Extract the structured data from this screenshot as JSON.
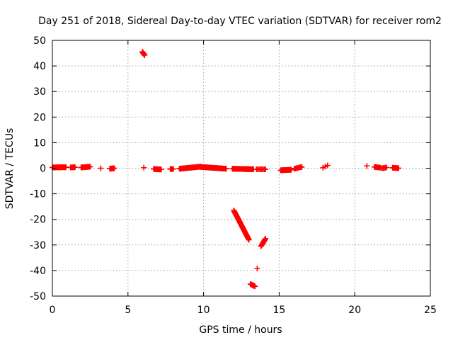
{
  "chart_data": {
    "type": "scatter",
    "title": "Day 251 of 2018, Sidereal Day-to-day VTEC variation (SDTVAR) for receiver rom2",
    "xlabel": "GPS time / hours",
    "ylabel": "SDTVAR / TECUs",
    "xlim": [
      0,
      25
    ],
    "ylim": [
      -50,
      50
    ],
    "xticks": [
      "0",
      "5",
      "10",
      "15",
      "20",
      "25"
    ],
    "yticks": [
      "50",
      "40",
      "30",
      "20",
      "10",
      "0",
      "-10",
      "-20",
      "-30",
      "-40",
      "-50"
    ],
    "grid": true,
    "marker": "+",
    "color": "#ff0000",
    "segments": [
      {
        "x": [
          0.0,
          0.9
        ],
        "y": [
          0.3,
          0.4
        ],
        "n": 28
      },
      {
        "x": [
          1.2,
          1.5
        ],
        "y": [
          0.3,
          0.4
        ],
        "n": 8
      },
      {
        "x": [
          1.9,
          2.5
        ],
        "y": [
          0.3,
          0.6
        ],
        "n": 20
      },
      {
        "x": [
          3.2,
          3.2
        ],
        "y": [
          0.0,
          0.0
        ],
        "n": 1
      },
      {
        "x": [
          3.8,
          4.1
        ],
        "y": [
          -0.2,
          0.0
        ],
        "n": 8
      },
      {
        "x": [
          5.95,
          6.1
        ],
        "y": [
          45.5,
          44.2
        ],
        "n": 7
      },
      {
        "x": [
          6.05,
          6.05
        ],
        "y": [
          0.2,
          0.2
        ],
        "n": 1
      },
      {
        "x": [
          6.7,
          7.2
        ],
        "y": [
          -0.3,
          -0.5
        ],
        "n": 14
      },
      {
        "x": [
          7.8,
          8.0
        ],
        "y": [
          -0.3,
          -0.3
        ],
        "n": 5
      },
      {
        "x": [
          8.4,
          9.8
        ],
        "y": [
          -0.2,
          0.6
        ],
        "n": 40
      },
      {
        "x": [
          9.8,
          11.5
        ],
        "y": [
          0.5,
          -0.2
        ],
        "n": 48
      },
      {
        "x": [
          11.9,
          13.3
        ],
        "y": [
          -0.2,
          -0.4
        ],
        "n": 40
      },
      {
        "x": [
          13.5,
          14.1
        ],
        "y": [
          -0.4,
          -0.4
        ],
        "n": 8
      },
      {
        "x": [
          12.0,
          13.0
        ],
        "y": [
          -16.5,
          -28.0
        ],
        "n": 45
      },
      {
        "x": [
          13.1,
          13.4
        ],
        "y": [
          -45.3,
          -46.2
        ],
        "n": 7
      },
      {
        "x": [
          13.55,
          13.55
        ],
        "y": [
          -39.2,
          -39.2
        ],
        "n": 1
      },
      {
        "x": [
          13.8,
          14.1
        ],
        "y": [
          -30.5,
          -27.5
        ],
        "n": 10
      },
      {
        "x": [
          15.1,
          15.8
        ],
        "y": [
          -0.8,
          -0.6
        ],
        "n": 18
      },
      {
        "x": [
          16.0,
          16.5
        ],
        "y": [
          -0.2,
          0.5
        ],
        "n": 8
      },
      {
        "x": [
          17.9,
          18.2
        ],
        "y": [
          0.2,
          1.1
        ],
        "n": 3
      },
      {
        "x": [
          20.8,
          20.8
        ],
        "y": [
          0.9,
          0.9
        ],
        "n": 1
      },
      {
        "x": [
          21.3,
          21.7
        ],
        "y": [
          0.5,
          0.2
        ],
        "n": 8
      },
      {
        "x": [
          21.8,
          22.1
        ],
        "y": [
          0.0,
          0.3
        ],
        "n": 5
      },
      {
        "x": [
          22.5,
          22.9
        ],
        "y": [
          0.2,
          0.0
        ],
        "n": 10
      }
    ]
  }
}
